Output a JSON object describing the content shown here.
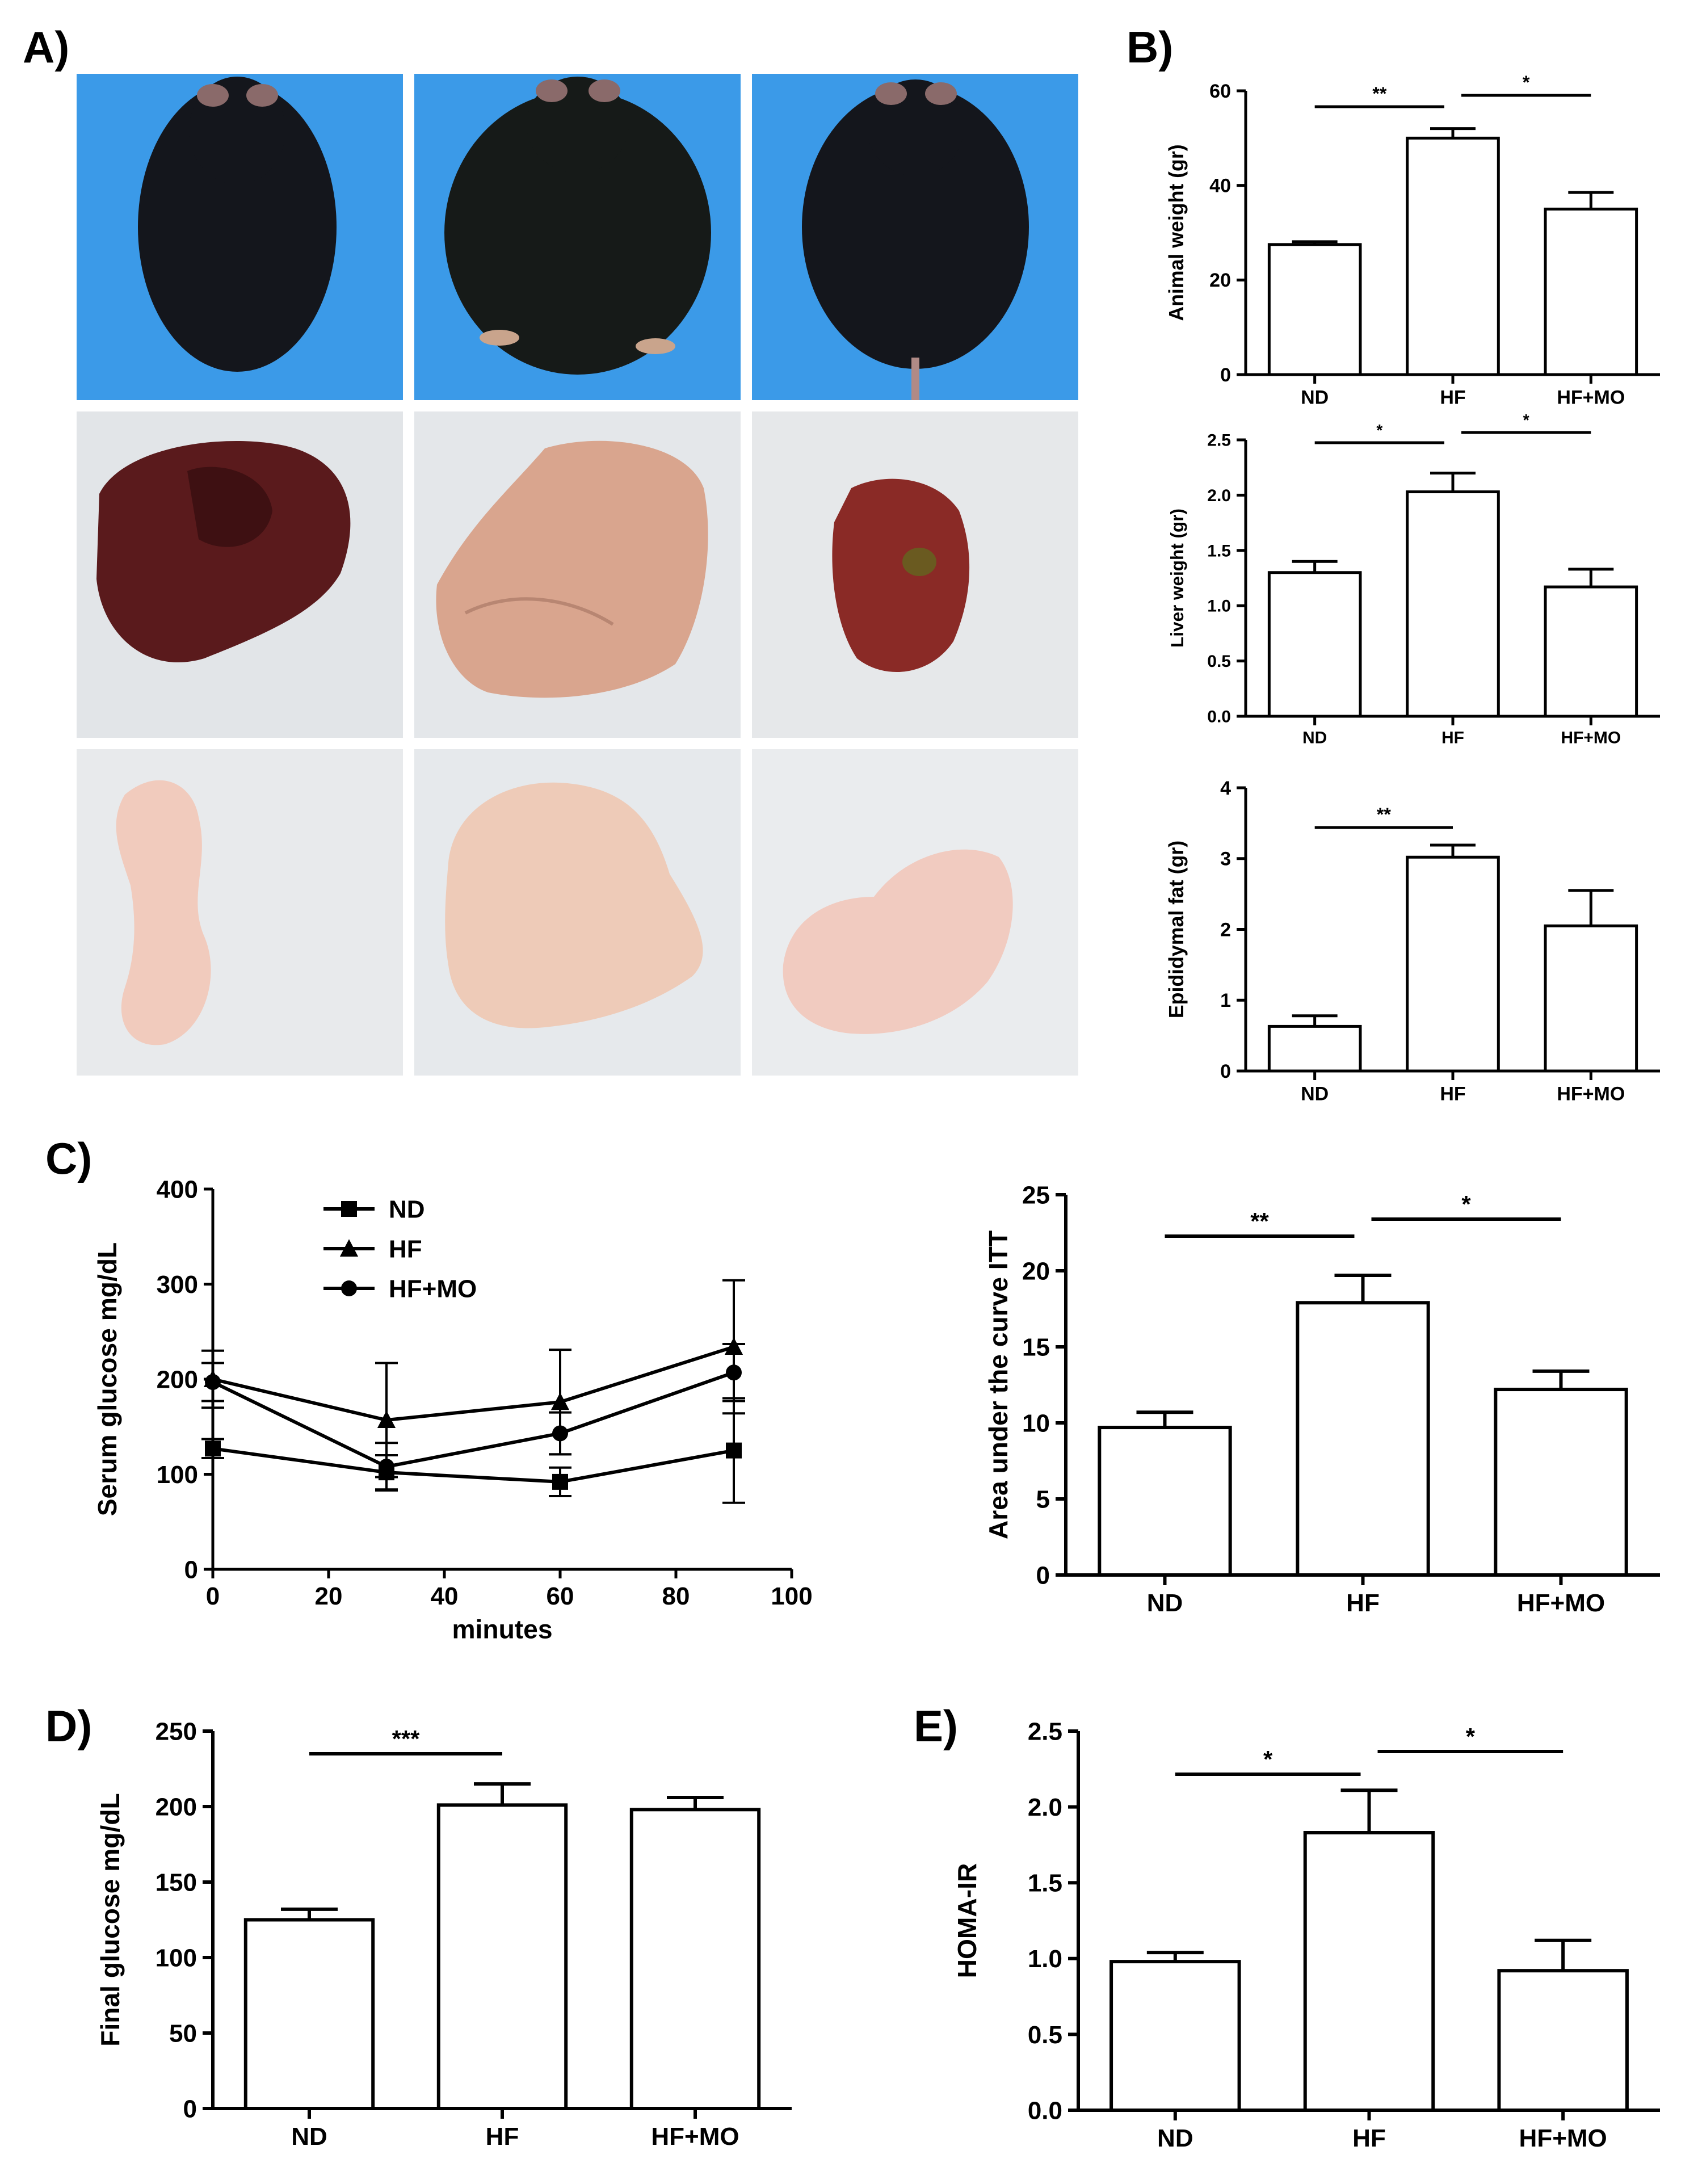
{
  "panel_labels": {
    "a": "A)",
    "b": "B)",
    "c": "C)",
    "d": "D)",
    "e": "E)"
  },
  "colors": {
    "ink": "#000000",
    "photo_bg_mouse": "#3b9ae8",
    "photo_bg_tray": "#e4e7ea",
    "mouse_fur": "#14161c",
    "liver_dark": "#5a1a1c",
    "liver_pale": "#d9a58e",
    "liver_mo": "#8a2a26",
    "fat": "#f1cbbd"
  },
  "chart_data": [
    {
      "id": "animal-weight",
      "type": "bar",
      "categories": [
        "ND",
        "HF",
        "HF+MO"
      ],
      "values": [
        27.5,
        50,
        35
      ],
      "errors": [
        0.6,
        2,
        3.5
      ],
      "ylabel": "Animal weight (gr)",
      "ylim": [
        0,
        60
      ],
      "yticks": [
        "0",
        "20",
        "40",
        "60"
      ],
      "brackets": [
        {
          "from": 0,
          "to": 1,
          "label": "**"
        },
        {
          "from": 1,
          "to": 2,
          "label": "*"
        }
      ]
    },
    {
      "id": "liver-weight",
      "type": "bar",
      "categories": [
        "ND",
        "HF",
        "HF+MO"
      ],
      "values": [
        1.3,
        2.03,
        1.17
      ],
      "errors": [
        0.1,
        0.17,
        0.16
      ],
      "ylabel": "Liver weight (gr)",
      "ylim": [
        0,
        2.5
      ],
      "yticks": [
        "0.0",
        "0.5",
        "1.0",
        "1.5",
        "2.0",
        "2.5"
      ],
      "brackets": [
        {
          "from": 0,
          "to": 1,
          "label": "*"
        },
        {
          "from": 1,
          "to": 2,
          "label": "*"
        }
      ]
    },
    {
      "id": "epididymal-fat",
      "type": "bar",
      "categories": [
        "ND",
        "HF",
        "HF+MO"
      ],
      "values": [
        0.63,
        3.02,
        2.05
      ],
      "errors": [
        0.15,
        0.17,
        0.5
      ],
      "ylabel": "Epididymal fat (gr)",
      "ylim": [
        0,
        4
      ],
      "yticks": [
        "0",
        "1",
        "2",
        "3",
        "4"
      ],
      "brackets": [
        {
          "from": 0,
          "to": 1,
          "label": "**"
        }
      ]
    },
    {
      "id": "itt-curve",
      "type": "line",
      "xlabel": "minutes",
      "ylabel": "Serum glucose mg/dL",
      "xlim": [
        0,
        100
      ],
      "ylim": [
        0,
        400
      ],
      "xticks": [
        "0",
        "20",
        "40",
        "60",
        "80",
        "100"
      ],
      "yticks": [
        "0",
        "100",
        "200",
        "300",
        "400"
      ],
      "x": [
        0,
        30,
        60,
        90
      ],
      "series": [
        {
          "name": "ND",
          "marker": "square",
          "values": [
            127,
            102,
            92,
            125
          ],
          "errors": [
            10,
            18,
            15,
            55
          ]
        },
        {
          "name": "HF",
          "marker": "triangle",
          "values": [
            200,
            157,
            176,
            234
          ],
          "errors": [
            30,
            60,
            55,
            70
          ]
        },
        {
          "name": "HF+MO",
          "marker": "circle",
          "values": [
            197,
            108,
            143,
            207
          ],
          "errors": [
            20,
            25,
            22,
            30
          ]
        }
      ]
    },
    {
      "id": "itt-auc",
      "type": "bar",
      "categories": [
        "ND",
        "HF",
        "HF+MO"
      ],
      "values": [
        9.7,
        17.9,
        12.2
      ],
      "errors": [
        1,
        1.8,
        1.2
      ],
      "ylabel": "Area under the curve ITT",
      "ylim": [
        0,
        25
      ],
      "yticks": [
        "0",
        "5",
        "10",
        "15",
        "20",
        "25"
      ],
      "brackets": [
        {
          "from": 0,
          "to": 1,
          "label": "**"
        },
        {
          "from": 1,
          "to": 2,
          "label": "*"
        }
      ]
    },
    {
      "id": "final-glucose",
      "type": "bar",
      "categories": [
        "ND",
        "HF",
        "HF+MO"
      ],
      "values": [
        125,
        201,
        198
      ],
      "errors": [
        7,
        14,
        8
      ],
      "ylabel": "Final glucose mg/dL",
      "ylim": [
        0,
        250
      ],
      "yticks": [
        "0",
        "50",
        "100",
        "150",
        "200",
        "250"
      ],
      "brackets": [
        {
          "from": 0,
          "to": 1,
          "label": "***"
        }
      ]
    },
    {
      "id": "homa-ir",
      "type": "bar",
      "categories": [
        "ND",
        "HF",
        "HF+MO"
      ],
      "values": [
        0.98,
        1.83,
        0.92
      ],
      "errors": [
        0.06,
        0.28,
        0.2
      ],
      "ylabel": "HOMA-IR",
      "ylim": [
        0,
        2.5
      ],
      "yticks": [
        "0.0",
        "0.5",
        "1.0",
        "1.5",
        "2.0",
        "2.5"
      ],
      "brackets": [
        {
          "from": 0,
          "to": 1,
          "label": "*"
        },
        {
          "from": 1,
          "to": 2,
          "label": "*"
        }
      ]
    }
  ]
}
